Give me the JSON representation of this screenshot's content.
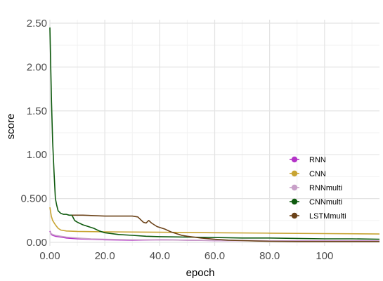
{
  "chart_data": {
    "type": "line",
    "xlabel": "epoch",
    "ylabel": "score",
    "xlim": [
      0,
      120
    ],
    "ylim": [
      0,
      2.5
    ],
    "x_ticks": [
      {
        "value": 0,
        "label": "0.00"
      },
      {
        "value": 20,
        "label": "20.0"
      },
      {
        "value": 40,
        "label": "40.0"
      },
      {
        "value": 60,
        "label": "60.0"
      },
      {
        "value": 80,
        "label": "80.0"
      },
      {
        "value": 100,
        "label": "100"
      }
    ],
    "y_ticks": [
      {
        "value": 0,
        "label": "0.00"
      },
      {
        "value": 0.5,
        "label": "0.500"
      },
      {
        "value": 1.0,
        "label": "1.00"
      },
      {
        "value": 1.5,
        "label": "1.50"
      },
      {
        "value": 2.0,
        "label": "2.00"
      },
      {
        "value": 2.5,
        "label": "2.50"
      }
    ],
    "grid": true,
    "legend_position": "right",
    "series": [
      {
        "name": "RNN",
        "color": "#b434c8",
        "points": [
          [
            0,
            0.13
          ],
          [
            0.5,
            0.09
          ],
          [
            1,
            0.08
          ],
          [
            2,
            0.07
          ],
          [
            4,
            0.06
          ],
          [
            6,
            0.05
          ],
          [
            10,
            0.04
          ],
          [
            15,
            0.035
          ],
          [
            20,
            0.03
          ],
          [
            30,
            0.025
          ],
          [
            40,
            0.03
          ],
          [
            50,
            0.025
          ],
          [
            60,
            0.02
          ],
          [
            70,
            0.02
          ],
          [
            80,
            0.018
          ],
          [
            90,
            0.018
          ],
          [
            100,
            0.017
          ],
          [
            110,
            0.017
          ],
          [
            120,
            0.016
          ]
        ]
      },
      {
        "name": "CNN",
        "color": "#c8a432",
        "points": [
          [
            0,
            0.4
          ],
          [
            0.5,
            0.3
          ],
          [
            1,
            0.25
          ],
          [
            2,
            0.2
          ],
          [
            3,
            0.16
          ],
          [
            4,
            0.14
          ],
          [
            6,
            0.13
          ],
          [
            10,
            0.125
          ],
          [
            20,
            0.12
          ],
          [
            40,
            0.115
          ],
          [
            60,
            0.11
          ],
          [
            80,
            0.105
          ],
          [
            100,
            0.1
          ],
          [
            120,
            0.095
          ]
        ]
      },
      {
        "name": "RNNmulti",
        "color": "#c8a0c8",
        "points": [
          [
            0,
            0.12
          ],
          [
            0.5,
            0.1
          ],
          [
            1,
            0.09
          ],
          [
            2,
            0.08
          ],
          [
            4,
            0.07
          ],
          [
            6,
            0.06
          ],
          [
            10,
            0.05
          ],
          [
            15,
            0.04
          ],
          [
            20,
            0.035
          ],
          [
            30,
            0.03
          ],
          [
            40,
            0.028
          ],
          [
            50,
            0.025
          ],
          [
            60,
            0.022
          ],
          [
            70,
            0.02
          ],
          [
            80,
            0.018
          ],
          [
            90,
            0.017
          ],
          [
            100,
            0.016
          ],
          [
            110,
            0.015
          ],
          [
            120,
            0.014
          ]
        ]
      },
      {
        "name": "CNNmulti",
        "color": "#0e5a0e",
        "points": [
          [
            0,
            2.45
          ],
          [
            0.3,
            2.0
          ],
          [
            0.6,
            1.6
          ],
          [
            1,
            1.15
          ],
          [
            1.5,
            0.8
          ],
          [
            2,
            0.5
          ],
          [
            2.5,
            0.42
          ],
          [
            3,
            0.36
          ],
          [
            4,
            0.33
          ],
          [
            5,
            0.32
          ],
          [
            6,
            0.32
          ],
          [
            7,
            0.31
          ],
          [
            8,
            0.31
          ],
          [
            9,
            0.25
          ],
          [
            10,
            0.23
          ],
          [
            12,
            0.2
          ],
          [
            14,
            0.18
          ],
          [
            16,
            0.16
          ],
          [
            18,
            0.13
          ],
          [
            20,
            0.11
          ],
          [
            25,
            0.09
          ],
          [
            30,
            0.08
          ],
          [
            35,
            0.07
          ],
          [
            40,
            0.065
          ],
          [
            50,
            0.06
          ],
          [
            60,
            0.055
          ],
          [
            70,
            0.05
          ],
          [
            80,
            0.05
          ],
          [
            90,
            0.045
          ],
          [
            100,
            0.04
          ],
          [
            110,
            0.04
          ],
          [
            120,
            0.035
          ]
        ]
      },
      {
        "name": "LSTMmulti",
        "color": "#6b4218",
        "points": [
          [
            8,
            0.31
          ],
          [
            12,
            0.31
          ],
          [
            20,
            0.3
          ],
          [
            25,
            0.3
          ],
          [
            30,
            0.3
          ],
          [
            32,
            0.29
          ],
          [
            33,
            0.26
          ],
          [
            34,
            0.23
          ],
          [
            35,
            0.22
          ],
          [
            36,
            0.25
          ],
          [
            37,
            0.22
          ],
          [
            38,
            0.2
          ],
          [
            39,
            0.18
          ],
          [
            40,
            0.17
          ],
          [
            42,
            0.15
          ],
          [
            44,
            0.12
          ],
          [
            46,
            0.1
          ],
          [
            48,
            0.08
          ],
          [
            50,
            0.07
          ],
          [
            55,
            0.05
          ],
          [
            60,
            0.035
          ],
          [
            65,
            0.025
          ],
          [
            70,
            0.02
          ],
          [
            75,
            0.015
          ],
          [
            80,
            0.012
          ],
          [
            90,
            0.01
          ],
          [
            100,
            0.01
          ],
          [
            110,
            0.01
          ],
          [
            120,
            0.01
          ]
        ]
      }
    ]
  }
}
